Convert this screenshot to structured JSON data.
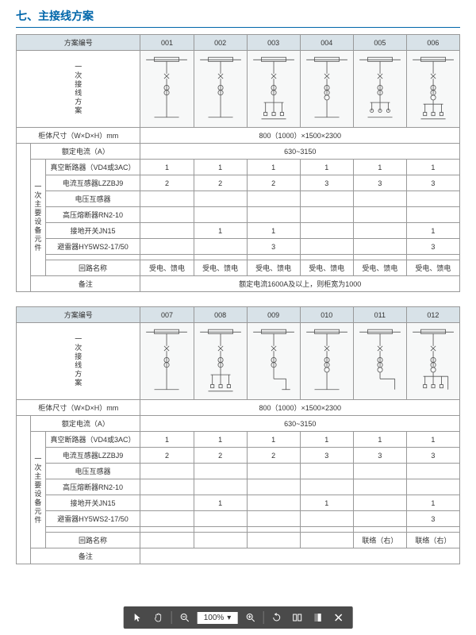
{
  "section_title": "七、主接线方案",
  "blocks": [
    {
      "scheme_label": "方案编号",
      "scheme_nums": [
        "001",
        "002",
        "003",
        "004",
        "005",
        "006"
      ],
      "diagram_label": "一次接线方案",
      "diagram_types": [
        "A",
        "A",
        "B",
        "C",
        "D",
        "E"
      ],
      "dim_label": "柜体尺寸（W×D×H）mm",
      "dim_value": "800（1000）×1500×2300",
      "group_label": "一次主要设备元件",
      "rows": [
        {
          "label": "额定电流（A）",
          "span": true,
          "span_value": "630~3150"
        },
        {
          "label": "真空断路器（VD4或3AC）",
          "vals": [
            "1",
            "1",
            "1",
            "1",
            "1",
            "1"
          ]
        },
        {
          "label": "电流互感器LZZBJ9",
          "vals": [
            "2",
            "2",
            "2",
            "3",
            "3",
            "3"
          ]
        },
        {
          "label": "电压互感器",
          "vals": [
            "",
            "",
            "",
            "",
            "",
            ""
          ]
        },
        {
          "label": "高压熔断器RN2-10",
          "vals": [
            "",
            "",
            "",
            "",
            "",
            ""
          ]
        },
        {
          "label": "接地开关JN15",
          "vals": [
            "",
            "1",
            "1",
            "",
            "",
            "1"
          ]
        },
        {
          "label": "避雷器HY5WS2-17/50",
          "vals": [
            "",
            "",
            "3",
            "",
            "",
            "3"
          ]
        },
        {
          "label": "",
          "vals": [
            "",
            "",
            "",
            "",
            "",
            ""
          ]
        },
        {
          "label": "回路名称",
          "vals": [
            "受电、馈电",
            "受电、馈电",
            "受电、馈电",
            "受电、馈电",
            "受电、馈电",
            "受电、馈电"
          ]
        }
      ],
      "note_label": "备注",
      "note_value": "额定电流1600A及以上，则柜宽为1000"
    },
    {
      "scheme_label": "方案编号",
      "scheme_nums": [
        "007",
        "008",
        "009",
        "010",
        "011",
        "012"
      ],
      "diagram_label": "一次接线方案",
      "diagram_types": [
        "A",
        "B",
        "F",
        "C",
        "G",
        "H"
      ],
      "dim_label": "柜体尺寸（W×D×H）mm",
      "dim_value": "800（1000）×1500×2300",
      "group_label": "一次主要设备元件",
      "rows": [
        {
          "label": "额定电流（A）",
          "span": true,
          "span_value": "630~3150"
        },
        {
          "label": "真空断路器（VD4或3AC）",
          "vals": [
            "1",
            "1",
            "1",
            "1",
            "1",
            "1"
          ]
        },
        {
          "label": "电流互感器LZZBJ9",
          "vals": [
            "2",
            "2",
            "2",
            "3",
            "3",
            "3"
          ]
        },
        {
          "label": "电压互感器",
          "vals": [
            "",
            "",
            "",
            "",
            "",
            ""
          ]
        },
        {
          "label": "高压熔断器RN2-10",
          "vals": [
            "",
            "",
            "",
            "",
            "",
            ""
          ]
        },
        {
          "label": "接地开关JN15",
          "vals": [
            "",
            "1",
            "",
            "1",
            "",
            "1"
          ]
        },
        {
          "label": "避雷器HY5WS2-17/50",
          "vals": [
            "",
            "",
            "",
            "",
            "",
            "3"
          ]
        },
        {
          "label": "",
          "vals": [
            "",
            "",
            "",
            "",
            "",
            ""
          ]
        },
        {
          "label": "回路名称",
          "vals": [
            "",
            "",
            "",
            "",
            "联络（右）",
            "联络（右）"
          ]
        }
      ],
      "note_label": "备注",
      "note_value": ""
    }
  ],
  "toolbar": {
    "zoom": "100%"
  },
  "colors": {
    "accent": "#0066aa",
    "header_bg": "#d8e2e8",
    "border": "#999999",
    "diagram_bg": "#f7f8f8",
    "toolbar_bg": "#4a4a4a"
  },
  "svg_defs": {
    "stroke": "#555555",
    "stroke_width": 0.8
  }
}
